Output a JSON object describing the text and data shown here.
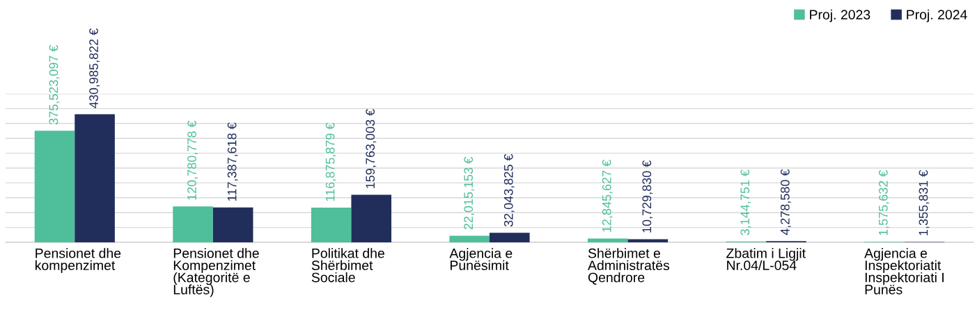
{
  "chart_data": {
    "type": "bar",
    "categories": [
      "Pensionet dhe\nkompenzimet",
      "Pensionet dhe\nKompenzimet\n(Kategoritë e\nLuftës)",
      "Politikat dhe\nShërbimet\nSociale",
      "Agjencia e\nPunësimit",
      "Shërbimet e\nAdministratës\nQendrore",
      "Zbatim i Ligjit\nNr.04/L-054",
      "Agjencia e\nInspektoriatit\nInspektoriati I\nPunës"
    ],
    "series": [
      {
        "name": "Proj. 2023",
        "color": "#4fbf9b",
        "values": [
          375523097,
          120780778,
          116875879,
          22015153,
          12845627,
          3144751,
          1575632
        ],
        "value_labels": [
          "375,523,097 €",
          "120,780,778 €",
          "116,875,879 €",
          "22,015,153 €",
          "12,845,627 €",
          "3,144,751 €",
          "1,575,632 €"
        ]
      },
      {
        "name": "Proj. 2024",
        "color": "#212e5c",
        "values": [
          430985822,
          117387618,
          159763003,
          32043825,
          10729830,
          4278580,
          1355831
        ],
        "value_labels": [
          "430,985,822 €",
          "117,387,618 €",
          "159,763,003 €",
          "32,043,825 €",
          "10,729,830 €",
          "4,278,580 €",
          "1,355,831 €"
        ]
      }
    ],
    "ylim": [
      0,
      500000000
    ],
    "yticks": [
      {
        "value": 0,
        "label": null
      },
      {
        "value": 50000000,
        "label": null
      },
      {
        "value": 100000000,
        "label": null
      },
      {
        "value": 150000000,
        "label": null
      },
      {
        "value": 200000000,
        "label": null
      },
      {
        "value": 250000000,
        "label": null
      },
      {
        "value": 300000000,
        "label": null
      },
      {
        "value": 350000000,
        "label": null
      },
      {
        "value": 400000000,
        "label": null
      },
      {
        "value": 450000000,
        "label": null
      },
      {
        "value": 500000000,
        "label": null
      }
    ],
    "tick_labels": "x",
    "grid": "y",
    "legend": "top right"
  }
}
